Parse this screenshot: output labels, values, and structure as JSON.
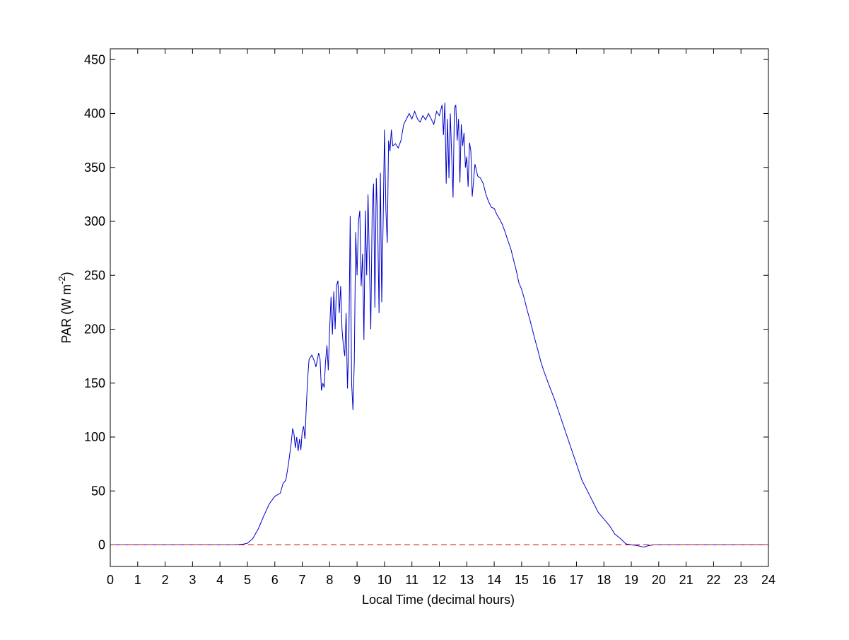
{
  "chart_data": {
    "type": "line",
    "title": "",
    "xlabel": "Local Time (decimal hours)",
    "ylabel": "PAR (W m-2)",
    "ylabel_parts": {
      "main": "PAR (W m",
      "sup": "-2",
      "end": ")"
    },
    "xlim": [
      0,
      24
    ],
    "ylim": [
      -20,
      460
    ],
    "xticks": [
      0,
      1,
      2,
      3,
      4,
      5,
      6,
      7,
      8,
      9,
      10,
      11,
      12,
      13,
      14,
      15,
      16,
      17,
      18,
      19,
      20,
      21,
      22,
      23,
      24
    ],
    "yticks": [
      0,
      50,
      100,
      150,
      200,
      250,
      300,
      350,
      400,
      450
    ],
    "grid": false,
    "colors": {
      "series": "#0000cc",
      "reference": "#cc0000"
    },
    "series": [
      {
        "style": "solid",
        "points": [
          [
            0,
            0
          ],
          [
            4.5,
            0
          ],
          [
            4.8,
            0.5
          ],
          [
            5.0,
            1.5
          ],
          [
            5.2,
            6
          ],
          [
            5.4,
            15
          ],
          [
            5.6,
            27
          ],
          [
            5.8,
            38
          ],
          [
            6.0,
            45
          ],
          [
            6.2,
            48
          ],
          [
            6.3,
            57
          ],
          [
            6.4,
            60
          ],
          [
            6.5,
            75
          ],
          [
            6.6,
            95
          ],
          [
            6.65,
            108
          ],
          [
            6.7,
            103
          ],
          [
            6.75,
            90
          ],
          [
            6.8,
            100
          ],
          [
            6.85,
            87
          ],
          [
            6.9,
            98
          ],
          [
            6.95,
            88
          ],
          [
            7.0,
            105
          ],
          [
            7.05,
            110
          ],
          [
            7.1,
            98
          ],
          [
            7.15,
            130
          ],
          [
            7.2,
            155
          ],
          [
            7.25,
            172
          ],
          [
            7.35,
            176
          ],
          [
            7.45,
            170
          ],
          [
            7.5,
            165
          ],
          [
            7.6,
            178
          ],
          [
            7.65,
            172
          ],
          [
            7.7,
            143
          ],
          [
            7.75,
            150
          ],
          [
            7.8,
            146
          ],
          [
            7.85,
            170
          ],
          [
            7.9,
            185
          ],
          [
            7.95,
            162
          ],
          [
            8.0,
            200
          ],
          [
            8.05,
            230
          ],
          [
            8.1,
            195
          ],
          [
            8.15,
            235
          ],
          [
            8.2,
            200
          ],
          [
            8.25,
            240
          ],
          [
            8.3,
            245
          ],
          [
            8.35,
            215
          ],
          [
            8.4,
            240
          ],
          [
            8.45,
            200
          ],
          [
            8.5,
            185
          ],
          [
            8.55,
            175
          ],
          [
            8.6,
            215
          ],
          [
            8.65,
            145
          ],
          [
            8.7,
            190
          ],
          [
            8.75,
            305
          ],
          [
            8.8,
            150
          ],
          [
            8.85,
            125
          ],
          [
            8.9,
            170
          ],
          [
            8.95,
            290
          ],
          [
            9.0,
            250
          ],
          [
            9.05,
            300
          ],
          [
            9.1,
            310
          ],
          [
            9.15,
            240
          ],
          [
            9.2,
            270
          ],
          [
            9.25,
            190
          ],
          [
            9.3,
            310
          ],
          [
            9.35,
            250
          ],
          [
            9.4,
            325
          ],
          [
            9.45,
            260
          ],
          [
            9.5,
            200
          ],
          [
            9.55,
            310
          ],
          [
            9.6,
            335
          ],
          [
            9.65,
            220
          ],
          [
            9.7,
            340
          ],
          [
            9.75,
            300
          ],
          [
            9.8,
            215
          ],
          [
            9.85,
            345
          ],
          [
            9.9,
            225
          ],
          [
            9.95,
            300
          ],
          [
            10.0,
            385
          ],
          [
            10.05,
            310
          ],
          [
            10.1,
            280
          ],
          [
            10.15,
            375
          ],
          [
            10.2,
            365
          ],
          [
            10.25,
            385
          ],
          [
            10.3,
            370
          ],
          [
            10.4,
            372
          ],
          [
            10.5,
            368
          ],
          [
            10.6,
            375
          ],
          [
            10.7,
            390
          ],
          [
            10.8,
            395
          ],
          [
            10.9,
            400
          ],
          [
            11.0,
            395
          ],
          [
            11.1,
            402
          ],
          [
            11.2,
            395
          ],
          [
            11.3,
            392
          ],
          [
            11.4,
            398
          ],
          [
            11.5,
            394
          ],
          [
            11.6,
            400
          ],
          [
            11.7,
            395
          ],
          [
            11.8,
            390
          ],
          [
            11.9,
            402
          ],
          [
            12.0,
            398
          ],
          [
            12.1,
            408
          ],
          [
            12.15,
            380
          ],
          [
            12.2,
            410
          ],
          [
            12.25,
            335
          ],
          [
            12.3,
            395
          ],
          [
            12.35,
            340
          ],
          [
            12.4,
            400
          ],
          [
            12.45,
            360
          ],
          [
            12.5,
            322
          ],
          [
            12.55,
            405
          ],
          [
            12.6,
            408
          ],
          [
            12.65,
            375
          ],
          [
            12.7,
            395
          ],
          [
            12.75,
            336
          ],
          [
            12.8,
            390
          ],
          [
            12.85,
            370
          ],
          [
            12.9,
            382
          ],
          [
            12.95,
            350
          ],
          [
            13.0,
            360
          ],
          [
            13.05,
            332
          ],
          [
            13.1,
            373
          ],
          [
            13.15,
            365
          ],
          [
            13.2,
            323
          ],
          [
            13.3,
            353
          ],
          [
            13.4,
            342
          ],
          [
            13.5,
            340
          ],
          [
            13.6,
            335
          ],
          [
            13.7,
            325
          ],
          [
            13.8,
            318
          ],
          [
            13.9,
            313
          ],
          [
            14.0,
            312
          ],
          [
            14.1,
            306
          ],
          [
            14.2,
            302
          ],
          [
            14.3,
            297
          ],
          [
            14.4,
            290
          ],
          [
            14.5,
            282
          ],
          [
            14.6,
            275
          ],
          [
            14.7,
            265
          ],
          [
            14.8,
            255
          ],
          [
            14.9,
            243
          ],
          [
            15.0,
            237
          ],
          [
            15.1,
            228
          ],
          [
            15.2,
            218
          ],
          [
            15.3,
            209
          ],
          [
            15.4,
            199
          ],
          [
            15.5,
            189
          ],
          [
            15.6,
            180
          ],
          [
            15.7,
            170
          ],
          [
            15.8,
            162
          ],
          [
            15.9,
            155
          ],
          [
            16.0,
            148
          ],
          [
            16.2,
            135
          ],
          [
            16.4,
            120
          ],
          [
            16.6,
            105
          ],
          [
            16.8,
            90
          ],
          [
            17.0,
            75
          ],
          [
            17.2,
            60
          ],
          [
            17.4,
            50
          ],
          [
            17.6,
            40
          ],
          [
            17.8,
            30
          ],
          [
            18.0,
            24
          ],
          [
            18.2,
            18
          ],
          [
            18.4,
            10
          ],
          [
            18.6,
            6
          ],
          [
            18.8,
            1
          ],
          [
            19.0,
            0
          ],
          [
            19.2,
            -0.5
          ],
          [
            19.4,
            -1.8
          ],
          [
            19.5,
            -2
          ],
          [
            19.6,
            -0.8
          ],
          [
            19.8,
            0
          ],
          [
            24,
            0
          ]
        ]
      },
      {
        "style": "dashed",
        "points": [
          [
            0,
            0
          ],
          [
            24,
            0
          ]
        ]
      }
    ]
  }
}
